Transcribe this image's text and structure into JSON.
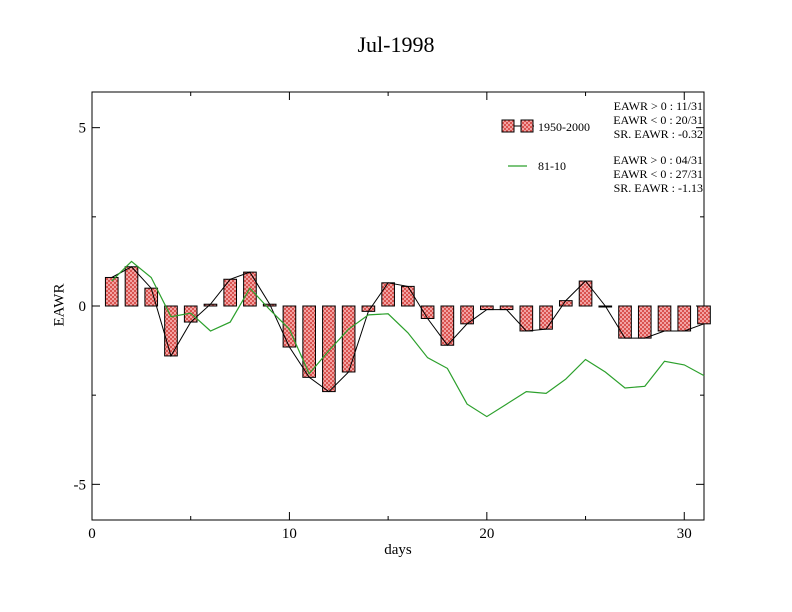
{
  "chart_data": {
    "type": "bar",
    "title": "Jul-1998",
    "xlabel": "days",
    "ylabel": "EAWR",
    "xlim": [
      0,
      31
    ],
    "ylim": [
      -6,
      6
    ],
    "xticks": [
      0,
      10,
      20,
      30
    ],
    "yticks": [
      5,
      0,
      -5
    ],
    "x": [
      1,
      2,
      3,
      4,
      5,
      6,
      7,
      8,
      9,
      10,
      11,
      12,
      13,
      14,
      15,
      16,
      17,
      18,
      19,
      20,
      21,
      22,
      23,
      24,
      25,
      26,
      27,
      28,
      29,
      30,
      31
    ],
    "series": [
      {
        "name": "1950-2000",
        "style": "bar+line",
        "color": "#f08080",
        "values": [
          0.8,
          1.1,
          0.5,
          -1.4,
          -0.45,
          0.05,
          0.75,
          0.95,
          0.05,
          -1.15,
          -2.0,
          -2.4,
          -1.85,
          -0.15,
          0.65,
          0.55,
          -0.35,
          -1.1,
          -0.5,
          -0.1,
          -0.1,
          -0.7,
          -0.65,
          0.15,
          0.7,
          0.0,
          -0.9,
          -0.9,
          -0.7,
          -0.7,
          -0.5
        ]
      },
      {
        "name": "81-10",
        "style": "line",
        "color": "#2ca02c",
        "values": [
          0.7,
          1.25,
          0.8,
          -0.3,
          -0.2,
          -0.7,
          -0.45,
          0.5,
          -0.1,
          -0.65,
          -1.9,
          -1.25,
          -0.65,
          -0.25,
          -0.22,
          -0.75,
          -1.45,
          -1.75,
          -2.75,
          -3.1,
          -2.75,
          -2.4,
          -2.45,
          -2.05,
          -1.5,
          -1.85,
          -2.3,
          -2.25,
          -1.55,
          -1.65,
          -1.95
        ]
      }
    ],
    "stats": [
      [
        "EAWR > 0 : 11/31",
        "EAWR < 0 : 20/31",
        "SR. EAWR : -0.32"
      ],
      [
        "EAWR > 0 : 04/31",
        "EAWR < 0 : 27/31",
        "SR. EAWR : -1.13"
      ]
    ],
    "legend_placement": "top-right",
    "grid": false
  }
}
